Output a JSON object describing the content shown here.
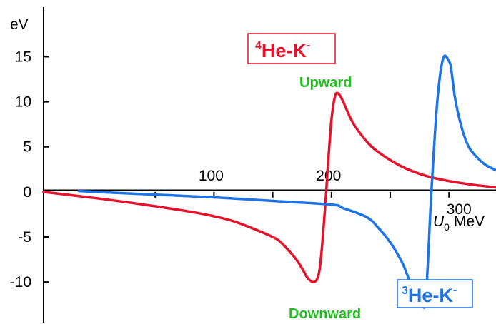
{
  "chart_data": {
    "type": "line",
    "title": "",
    "ylabel": "eV",
    "xlabel_var": "U",
    "xlabel_sub": "0",
    "xlabel_unit": "MeV",
    "xlim": [
      -45,
      340
    ],
    "ylim": [
      -14.5,
      20.5
    ],
    "x_ticks": [
      100,
      200,
      300
    ],
    "x_minor_ticks": [
      50,
      150,
      250,
      350
    ],
    "y_ticks": [
      15,
      10,
      5,
      0,
      -5,
      -10
    ],
    "y_tick_labels": [
      "15",
      "10",
      "5",
      "0",
      "-5",
      "-10"
    ],
    "grid": false,
    "series": [
      {
        "name": "4He-K-",
        "label_sup": "4",
        "label_main": "He-K",
        "label_charge": "-",
        "color": "#e5132b",
        "x": [
          -45,
          0,
          40,
          80,
          100,
          120,
          150,
          160,
          170,
          175,
          180,
          185,
          188,
          190,
          192,
          195,
          197,
          200,
          203,
          206,
          210,
          215,
          220,
          230,
          240,
          260,
          280,
          300,
          320,
          340
        ],
        "y": [
          0.0,
          -0.7,
          -1.4,
          -2.2,
          -2.7,
          -3.4,
          -5.0,
          -6.0,
          -7.5,
          -8.5,
          -9.6,
          -10.0,
          -9.6,
          -8.5,
          -6.0,
          -1.0,
          3.0,
          8.0,
          10.6,
          10.9,
          10.0,
          8.5,
          7.3,
          5.6,
          4.4,
          2.8,
          1.8,
          1.2,
          0.8,
          0.5
        ]
      },
      {
        "name": "3He-K-",
        "label_sup": "3",
        "label_main": "He-K",
        "label_charge": "-",
        "color": "#1c74e8",
        "x": [
          -15,
          0,
          50,
          100,
          150,
          200,
          210,
          230,
          240,
          250,
          260,
          265,
          270,
          275,
          278,
          280,
          282,
          285,
          290,
          295,
          300,
          302,
          305,
          310,
          315,
          320,
          330,
          340
        ],
        "y": [
          0.1,
          0.0,
          -0.3,
          -0.6,
          -1.0,
          -1.4,
          -1.8,
          -2.8,
          -4.0,
          -5.6,
          -7.8,
          -9.4,
          -11.0,
          -12.4,
          -12.8,
          -12.3,
          -8.0,
          0.0,
          10.0,
          14.8,
          14.5,
          13.5,
          10.5,
          7.5,
          5.5,
          4.4,
          3.1,
          2.4
        ]
      }
    ],
    "annotations": [
      {
        "text": "Upward",
        "color": "#1fbf1f"
      },
      {
        "text": "Downward",
        "color": "#1fbf1f"
      }
    ]
  }
}
